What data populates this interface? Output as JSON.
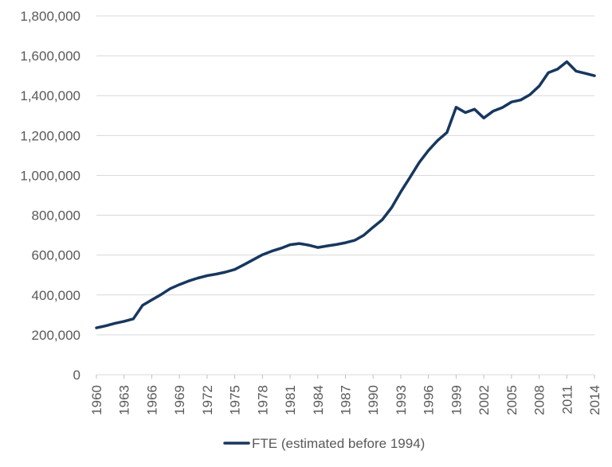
{
  "chart_data": {
    "type": "line",
    "title": "",
    "xlabel": "",
    "ylabel": "",
    "ylim": [
      0,
      1800000
    ],
    "y_ticks": [
      0,
      200000,
      400000,
      600000,
      800000,
      1000000,
      1200000,
      1400000,
      1600000,
      1800000
    ],
    "y_tick_labels": [
      "0",
      "200,000",
      "400,000",
      "600,000",
      "800,000",
      "1,000,000",
      "1,200,000",
      "1,400,000",
      "1,600,000",
      "1,800,000"
    ],
    "x_tick_labels": [
      "1960",
      "1963",
      "1966",
      "1969",
      "1972",
      "1975",
      "1978",
      "1981",
      "1984",
      "1987",
      "1990",
      "1993",
      "1996",
      "1999",
      "2002",
      "2005",
      "2008",
      "2011",
      "2014"
    ],
    "grid": true,
    "legend_position": "bottom",
    "series": [
      {
        "name": "FTE (estimated before 1994)",
        "color": "#17375e",
        "x": [
          1960,
          1961,
          1962,
          1963,
          1964,
          1965,
          1966,
          1967,
          1968,
          1969,
          1970,
          1971,
          1972,
          1973,
          1974,
          1975,
          1976,
          1977,
          1978,
          1979,
          1980,
          1981,
          1982,
          1983,
          1984,
          1985,
          1986,
          1987,
          1988,
          1989,
          1990,
          1991,
          1992,
          1993,
          1994,
          1995,
          1996,
          1997,
          1998,
          1999,
          2000,
          2001,
          2002,
          2003,
          2004,
          2005,
          2006,
          2007,
          2008,
          2009,
          2010,
          2011,
          2012,
          2013,
          2014
        ],
        "values": [
          235000,
          245000,
          258000,
          268000,
          280000,
          348000,
          375000,
          402000,
          432000,
          452000,
          470000,
          485000,
          497000,
          505000,
          515000,
          528000,
          552000,
          577000,
          602000,
          620000,
          634000,
          652000,
          658000,
          650000,
          638000,
          646000,
          653000,
          662000,
          674000,
          700000,
          740000,
          778000,
          838000,
          917000,
          990000,
          1065000,
          1125000,
          1175000,
          1215000,
          1342000,
          1315000,
          1332000,
          1288000,
          1322000,
          1340000,
          1368000,
          1378000,
          1405000,
          1448000,
          1515000,
          1533000,
          1570000,
          1523000,
          1512000,
          1500000
        ]
      }
    ]
  }
}
